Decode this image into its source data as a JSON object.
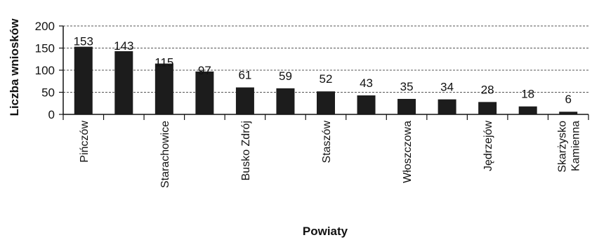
{
  "chart_data": {
    "type": "bar",
    "title": "",
    "xlabel": "Powiaty",
    "ylabel": "Liczba wniosków",
    "ylim": [
      0,
      200
    ],
    "yticks": [
      0,
      50,
      100,
      150,
      200
    ],
    "grid": "horizontal dashed",
    "legend": "none",
    "categories": [
      "Pińczów",
      "",
      "Starachowice",
      "",
      "Busko Zdrój",
      "",
      "Staszów",
      "",
      "Włoszczowa",
      "",
      "Jędrzejów",
      "",
      "Skarżysko Kamienna"
    ],
    "category_labels_shown": [
      {
        "index": 0,
        "lines": [
          "Pińczów"
        ]
      },
      {
        "index": 2,
        "lines": [
          "Starachowice"
        ]
      },
      {
        "index": 4,
        "lines": [
          "Busko Zdrój"
        ]
      },
      {
        "index": 6,
        "lines": [
          "Staszów"
        ]
      },
      {
        "index": 8,
        "lines": [
          "Włoszczowa"
        ]
      },
      {
        "index": 10,
        "lines": [
          "Jędrzejów"
        ]
      },
      {
        "index": 12,
        "lines": [
          "Skarżysko",
          "Kamienna"
        ]
      }
    ],
    "values": [
      153,
      143,
      115,
      97,
      61,
      59,
      52,
      43,
      35,
      34,
      28,
      18,
      6
    ],
    "bar_color": "#1c1c1c"
  }
}
